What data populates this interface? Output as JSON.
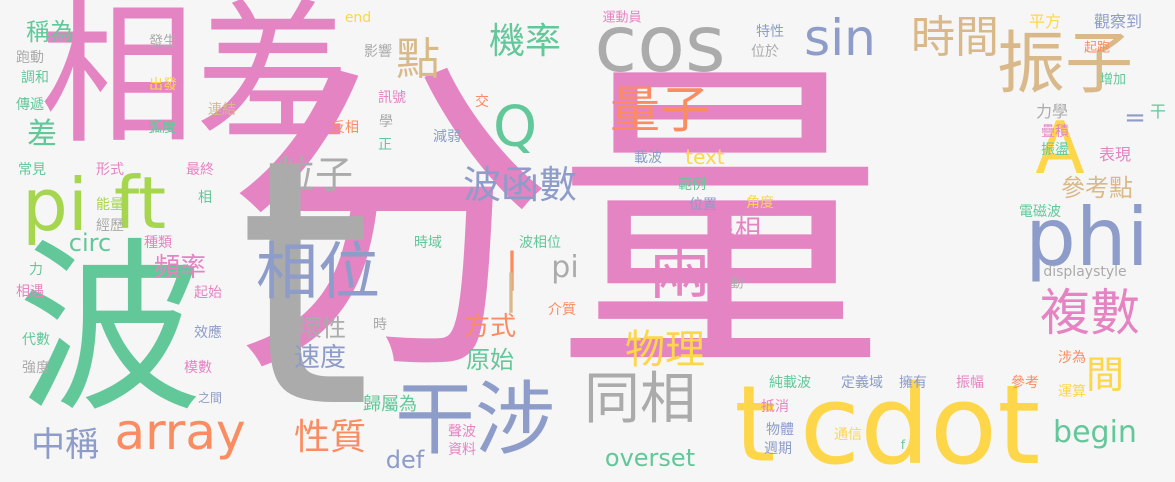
{
  "words": [
    {
      "text": "分量",
      "color": "pink",
      "weight": 10
    },
    {
      "text": "t",
      "color": "gray",
      "weight": 9
    },
    {
      "text": "波",
      "color": "green",
      "weight": 8
    },
    {
      "text": "相差",
      "color": "pink",
      "weight": 8
    },
    {
      "text": "cdot",
      "color": "yellow",
      "weight": 7
    },
    {
      "text": "t",
      "color": "yellow",
      "weight": 6
    },
    {
      "text": "干涉",
      "color": "blue",
      "weight": 6
    },
    {
      "text": "cos",
      "color": "gray",
      "weight": 6
    },
    {
      "text": "振子",
      "color": "tan",
      "weight": 5
    },
    {
      "text": "phi",
      "color": "blue",
      "weight": 5
    },
    {
      "text": "A",
      "color": "yellow",
      "weight": 5
    },
    {
      "text": "pi",
      "color": "lime",
      "weight": 5
    },
    {
      "text": "ft",
      "color": "lime",
      "weight": 5
    },
    {
      "text": "相位",
      "color": "blue",
      "weight": 5
    },
    {
      "text": "同相",
      "color": "gray",
      "weight": 4
    },
    {
      "text": "兩",
      "color": "pink",
      "weight": 4
    },
    {
      "text": "array",
      "color": "orange",
      "weight": 4
    },
    {
      "text": "點",
      "color": "tan",
      "weight": 4
    },
    {
      "text": "量子",
      "color": "orange",
      "weight": 4
    },
    {
      "text": "sin",
      "color": "blue",
      "weight": 4
    },
    {
      "text": "時間",
      "color": "tan",
      "weight": 4
    },
    {
      "text": "複數",
      "color": "pink",
      "weight": 4
    },
    {
      "text": "Q",
      "color": "green",
      "weight": 4
    },
    {
      "text": "機率",
      "color": "green",
      "weight": 3
    },
    {
      "text": "波函數",
      "color": "blue",
      "weight": 3
    },
    {
      "text": "粒子",
      "color": "gray",
      "weight": 3
    },
    {
      "text": "物理",
      "color": "yellow",
      "weight": 3
    },
    {
      "text": "間",
      "color": "yellow",
      "weight": 3
    },
    {
      "text": "begin",
      "color": "green",
      "weight": 3
    },
    {
      "text": "性質",
      "color": "orange",
      "weight": 3
    },
    {
      "text": "中稱",
      "color": "blue",
      "weight": 3
    },
    {
      "text": "差",
      "color": "green",
      "weight": 3
    },
    {
      "text": "頻率",
      "color": "pink",
      "weight": 2
    },
    {
      "text": "破壞性",
      "color": "gray",
      "weight": 2
    },
    {
      "text": "速度",
      "color": "blue",
      "weight": 2
    },
    {
      "text": "方式",
      "color": "orange",
      "weight": 2
    },
    {
      "text": "原始",
      "color": "green",
      "weight": 2
    },
    {
      "text": "異相",
      "color": "pink",
      "weight": 2
    },
    {
      "text": "參考點",
      "color": "tan",
      "weight": 2
    },
    {
      "text": "text",
      "color": "yellow",
      "weight": 2
    },
    {
      "text": "overset",
      "color": "green",
      "weight": 2
    },
    {
      "text": "def",
      "color": "blue",
      "weight": 2
    },
    {
      "text": "circ",
      "color": "green",
      "weight": 2
    },
    {
      "text": "pi",
      "color": "gray",
      "weight": 2
    },
    {
      "text": "稱為",
      "color": "green",
      "weight": 2
    },
    {
      "text": "=",
      "color": "blue",
      "weight": 1
    },
    {
      "text": "|",
      "color": "orange",
      "weight": 2
    },
    {
      "text": "|",
      "color": "tan",
      "weight": 2
    },
    {
      "text": "歸屬為",
      "color": "green",
      "weight": 1
    },
    {
      "text": "平方",
      "color": "yellow",
      "weight": 1
    },
    {
      "text": "觀察到",
      "color": "blue",
      "weight": 1
    },
    {
      "text": "起跑",
      "color": "orange",
      "weight": 1
    },
    {
      "text": "增加",
      "color": "green",
      "weight": 1
    },
    {
      "text": "力學",
      "color": "gray",
      "weight": 1
    },
    {
      "text": "干",
      "color": "green",
      "weight": 1
    },
    {
      "text": "疊積",
      "color": "pink",
      "weight": 1
    },
    {
      "text": "振盪",
      "color": "green",
      "weight": 1
    },
    {
      "text": "表現",
      "color": "pink",
      "weight": 1
    },
    {
      "text": "電磁波",
      "color": "green",
      "weight": 1
    },
    {
      "text": "displaystyle",
      "color": "gray",
      "weight": 1
    },
    {
      "text": "動",
      "color": "gray",
      "weight": 1
    },
    {
      "text": "end",
      "color": "yellow",
      "weight": 1
    },
    {
      "text": "運動員",
      "color": "pink",
      "weight": 1
    },
    {
      "text": "特性",
      "color": "blue",
      "weight": 1
    },
    {
      "text": "位於",
      "color": "gray",
      "weight": 1
    },
    {
      "text": "發生",
      "color": "gray",
      "weight": 1
    },
    {
      "text": "影響",
      "color": "gray",
      "weight": 1
    },
    {
      "text": "跑動",
      "color": "gray",
      "weight": 1
    },
    {
      "text": "調和",
      "color": "green",
      "weight": 1
    },
    {
      "text": "出發",
      "color": "yellow",
      "weight": 1
    },
    {
      "text": "傳遞",
      "color": "green",
      "weight": 1
    },
    {
      "text": "連結",
      "color": "tan",
      "weight": 1
    },
    {
      "text": "弧度",
      "color": "green",
      "weight": 1
    },
    {
      "text": "訊號",
      "color": "pink",
      "weight": 1
    },
    {
      "text": "交",
      "color": "orange",
      "weight": 1
    },
    {
      "text": "學",
      "color": "gray",
      "weight": 1
    },
    {
      "text": "反相",
      "color": "orange",
      "weight": 1
    },
    {
      "text": "正",
      "color": "green",
      "weight": 1
    },
    {
      "text": "減弱",
      "color": "blue",
      "weight": 1
    },
    {
      "text": "常見",
      "color": "green",
      "weight": 1
    },
    {
      "text": "形式",
      "color": "pink",
      "weight": 1
    },
    {
      "text": "最終",
      "color": "pink",
      "weight": 1
    },
    {
      "text": "載波",
      "color": "blue",
      "weight": 1
    },
    {
      "text": "範例",
      "color": "green",
      "weight": 1
    },
    {
      "text": "位置",
      "color": "blue",
      "weight": 1
    },
    {
      "text": "角度",
      "color": "yellow",
      "weight": 1
    },
    {
      "text": "能量",
      "color": "lime",
      "weight": 1
    },
    {
      "text": "相",
      "color": "green",
      "weight": 1
    },
    {
      "text": "經歷",
      "color": "gray",
      "weight": 1
    },
    {
      "text": "種類",
      "color": "pink",
      "weight": 1
    },
    {
      "text": "時域",
      "color": "green",
      "weight": 1
    },
    {
      "text": "波相位",
      "color": "green",
      "weight": 1
    },
    {
      "text": "力",
      "color": "green",
      "weight": 1
    },
    {
      "text": "起始",
      "color": "pink",
      "weight": 1
    },
    {
      "text": "相遇",
      "color": "pink",
      "weight": 1
    },
    {
      "text": "時",
      "color": "gray",
      "weight": 1
    },
    {
      "text": "介質",
      "color": "orange",
      "weight": 1
    },
    {
      "text": "代數",
      "color": "green",
      "weight": 1
    },
    {
      "text": "效應",
      "color": "blue",
      "weight": 1
    },
    {
      "text": "強度",
      "color": "gray",
      "weight": 1
    },
    {
      "text": "模數",
      "color": "pink",
      "weight": 1
    },
    {
      "text": "之間",
      "color": "blue",
      "weight": 1
    },
    {
      "text": "純載波",
      "color": "green",
      "weight": 1
    },
    {
      "text": "定義域",
      "color": "blue",
      "weight": 1
    },
    {
      "text": "擁有",
      "color": "blue",
      "weight": 1
    },
    {
      "text": "振幅",
      "color": "pink",
      "weight": 1
    },
    {
      "text": "參考",
      "color": "orange",
      "weight": 1
    },
    {
      "text": "涉為",
      "color": "orange",
      "weight": 1
    },
    {
      "text": "運算",
      "color": "yellow",
      "weight": 1
    },
    {
      "text": "抵消",
      "color": "pink",
      "weight": 1
    },
    {
      "text": "物體",
      "color": "blue",
      "weight": 1
    },
    {
      "text": "週期",
      "color": "blue",
      "weight": 1
    },
    {
      "text": "通信",
      "color": "yellow",
      "weight": 1
    },
    {
      "text": "f",
      "color": "green",
      "weight": 1
    },
    {
      "text": "聲波",
      "color": "pink",
      "weight": 1
    },
    {
      "text": "資料",
      "color": "pink",
      "weight": 1
    }
  ]
}
